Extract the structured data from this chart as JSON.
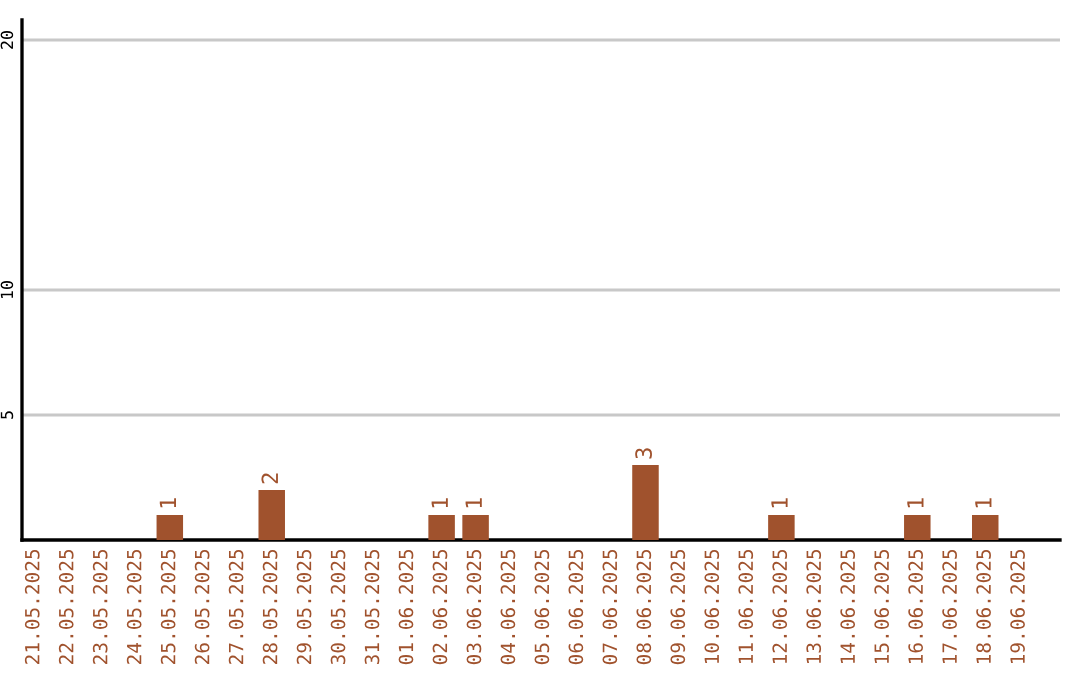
{
  "chart_data": {
    "type": "bar",
    "categories": [
      "21.05.2025",
      "22.05.2025",
      "23.05.2025",
      "24.05.2025",
      "25.05.2025",
      "26.05.2025",
      "27.05.2025",
      "28.05.2025",
      "29.05.2025",
      "30.05.2025",
      "31.05.2025",
      "01.06.2025",
      "02.06.2025",
      "03.06.2025",
      "04.06.2025",
      "05.06.2025",
      "06.06.2025",
      "07.06.2025",
      "08.06.2025",
      "09.06.2025",
      "10.06.2025",
      "11.06.2025",
      "12.06.2025",
      "13.06.2025",
      "14.06.2025",
      "15.06.2025",
      "16.06.2025",
      "17.06.2025",
      "18.06.2025",
      "19.06.2025"
    ],
    "values": [
      0,
      0,
      0,
      0,
      1,
      0,
      0,
      2,
      0,
      0,
      0,
      0,
      1,
      1,
      0,
      0,
      0,
      0,
      3,
      0,
      0,
      0,
      1,
      0,
      0,
      0,
      1,
      0,
      1,
      0
    ],
    "value_labels": [
      null,
      null,
      null,
      null,
      "1",
      null,
      null,
      "2",
      null,
      null,
      null,
      null,
      "1",
      "1",
      null,
      null,
      null,
      null,
      "3",
      null,
      null,
      null,
      "1",
      null,
      null,
      null,
      "1",
      null,
      "1",
      null
    ],
    "color": "#a0522d",
    "ylim": [
      0,
      20.8
    ],
    "yticks": [
      5,
      10,
      20
    ],
    "grid": "y"
  }
}
